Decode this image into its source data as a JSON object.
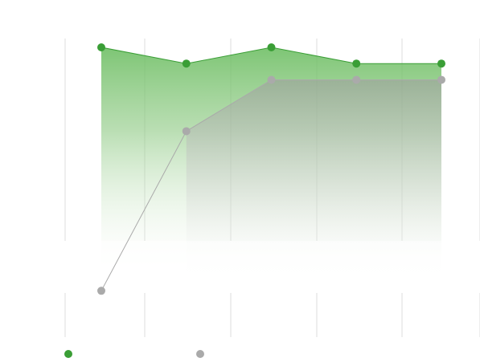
{
  "chart_data": {
    "type": "area",
    "title": "",
    "xlabel": "",
    "ylabel": "",
    "grid": "vertical",
    "legend_position": "bottom-left",
    "x": [
      1,
      2,
      3,
      4,
      5
    ],
    "ylim": [
      0,
      100
    ],
    "series": [
      {
        "values": [
          100,
          94,
          100,
          94,
          94
        ],
        "color": "#3a9e36",
        "fill": true
      },
      {
        "values": [
          10,
          69,
          88,
          88,
          88
        ],
        "color": "#aaaaaa",
        "fill": false
      }
    ]
  }
}
